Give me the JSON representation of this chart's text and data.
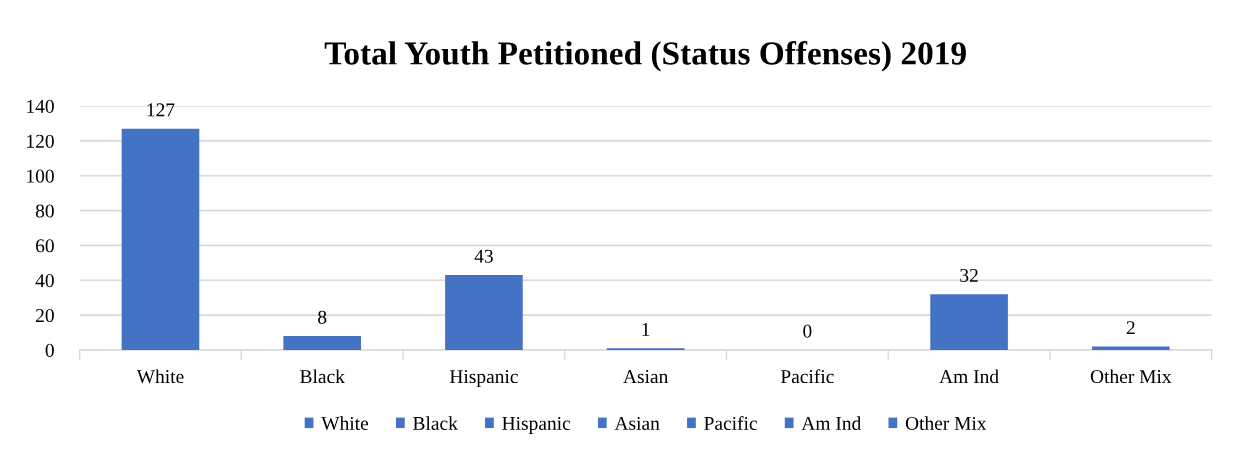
{
  "chart_data": {
    "type": "bar",
    "title": "Total Youth Petitioned (Status Offenses) 2019",
    "categories": [
      "White",
      "Black",
      "Hispanic",
      "Asian",
      "Pacific",
      "Am Ind",
      "Other Mix"
    ],
    "series": [
      {
        "name": "White",
        "color": "#4472c4",
        "values": [
          127,
          null,
          null,
          null,
          null,
          null,
          null
        ]
      },
      {
        "name": "Black",
        "color": "#4472c4",
        "values": [
          null,
          8,
          null,
          null,
          null,
          null,
          null
        ]
      },
      {
        "name": "Hispanic",
        "color": "#4472c4",
        "values": [
          null,
          null,
          43,
          null,
          null,
          null,
          null
        ]
      },
      {
        "name": "Asian",
        "color": "#4472c4",
        "values": [
          null,
          null,
          null,
          1,
          null,
          null,
          null
        ]
      },
      {
        "name": "Pacific",
        "color": "#4472c4",
        "values": [
          null,
          null,
          null,
          null,
          0,
          null,
          null
        ]
      },
      {
        "name": "Am Ind",
        "color": "#4472c4",
        "values": [
          null,
          null,
          null,
          null,
          null,
          32,
          null
        ]
      },
      {
        "name": "Other Mix",
        "color": "#4472c4",
        "values": [
          null,
          null,
          null,
          null,
          null,
          null,
          2
        ]
      }
    ],
    "ylim": [
      0,
      140
    ],
    "yticks": [
      0,
      20,
      40,
      60,
      80,
      100,
      120,
      140
    ],
    "grid": "y",
    "legend": "bottom",
    "data_labels": true
  }
}
